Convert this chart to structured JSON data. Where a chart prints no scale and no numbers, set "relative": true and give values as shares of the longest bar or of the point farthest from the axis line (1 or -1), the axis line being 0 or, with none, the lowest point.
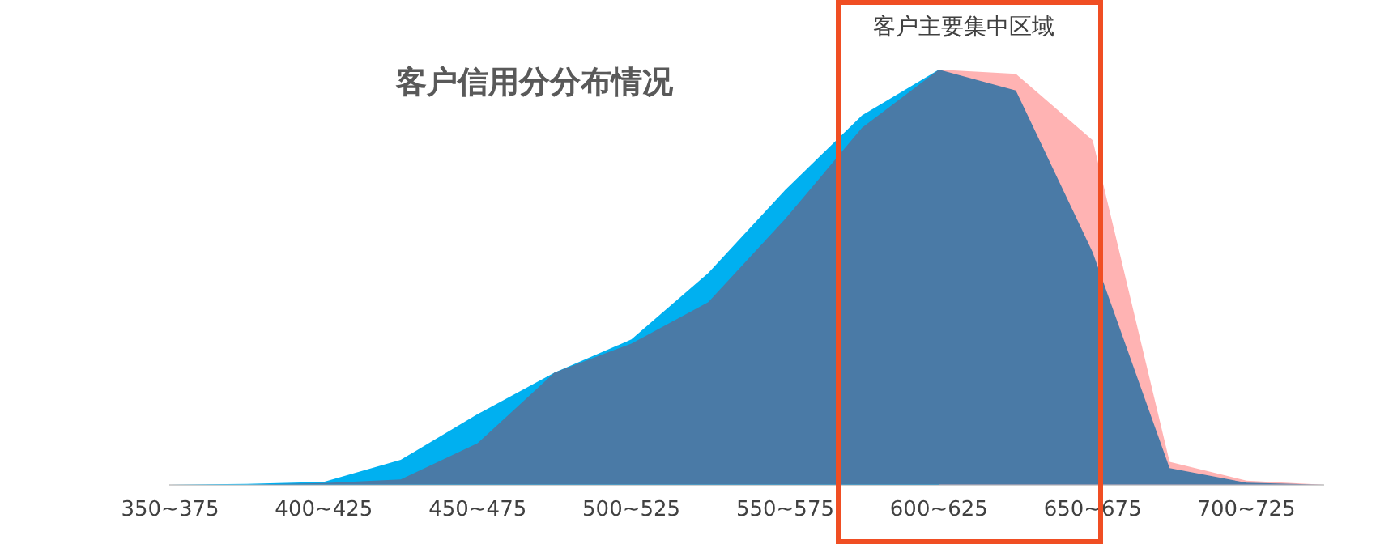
{
  "chart_data": {
    "type": "area",
    "title": "客户信用分分布情况",
    "relative": true,
    "legend": false,
    "grid": false,
    "marker": "none",
    "categories": [
      "350~375",
      null,
      "400~425",
      null,
      "450~475",
      null,
      "500~525",
      null,
      "550~575",
      null,
      "600~625",
      null,
      "650~675",
      null,
      "700~725",
      null
    ],
    "series": [
      {
        "color": "#ffb3b3",
        "values": [
          null,
          null,
          null,
          null,
          null,
          null,
          null,
          null,
          null,
          null,
          1,
          0.99,
          0.83,
          0.055,
          0.01,
          0
        ]
      },
      {
        "color": "#00b0f0",
        "values": [
          0,
          0.002,
          0.007,
          0.06,
          0.17,
          0.27,
          0.35,
          0.51,
          0.71,
          0.89,
          1,
          null,
          null,
          null,
          null,
          null
        ]
      },
      {
        "color": "#4a7aa6",
        "values": [
          0,
          0,
          0.004,
          0.013,
          0.1,
          0.27,
          0.34,
          0.44,
          0.64,
          0.86,
          1,
          0.95,
          0.56,
          0.04,
          0.005,
          0
        ]
      }
    ],
    "annotations": [
      "客户主要集中区域"
    ]
  }
}
